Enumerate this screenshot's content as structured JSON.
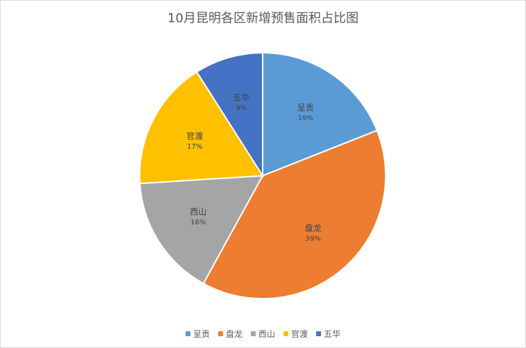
{
  "chart_data": {
    "type": "pie",
    "title": "10月昆明各区新增预售面积占比图",
    "categories": [
      "呈贡",
      "盘龙",
      "西山",
      "官渡",
      "五华"
    ],
    "values": [
      19,
      39,
      16,
      17,
      9
    ],
    "value_labels": [
      "19%",
      "39%",
      "16%",
      "17%",
      "9%"
    ],
    "colors": [
      "#5b9bd5",
      "#ed7d31",
      "#a5a5a5",
      "#ffc000",
      "#4472c4"
    ],
    "legend_position": "bottom",
    "start_angle_deg": 0,
    "direction": "clockwise"
  }
}
